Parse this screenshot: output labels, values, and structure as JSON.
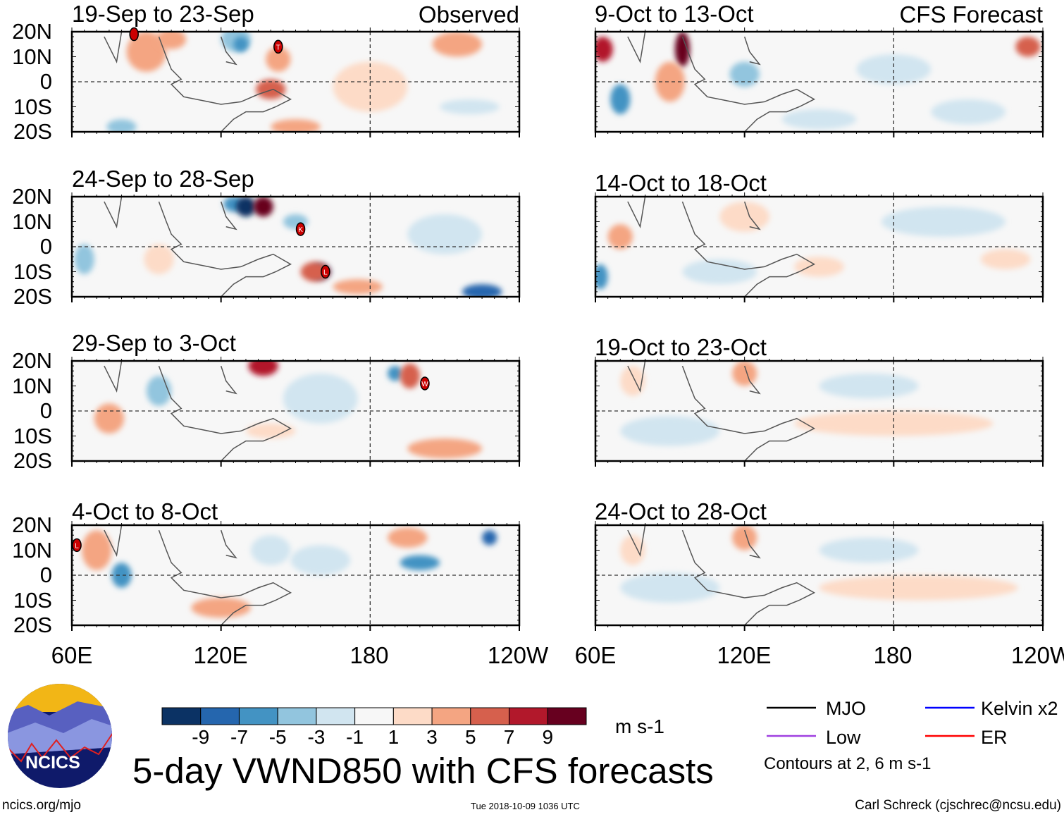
{
  "chart_data": {
    "type": "heatmap",
    "title": "5-day VWND850 with CFS forecasts",
    "units": "m s-1",
    "colorbar": {
      "ticks": [
        "-9",
        "-7",
        "-5",
        "-3",
        "-1",
        "1",
        "3",
        "5",
        "7",
        "9"
      ],
      "colors": [
        "#0b3264",
        "#2566ae",
        "#4393c3",
        "#92c5de",
        "#d1e5f0",
        "#f7f7f7",
        "#fddbc7",
        "#f4a582",
        "#d6604d",
        "#b2182b",
        "#67001f"
      ]
    },
    "lat_ticks": [
      "20N",
      "10N",
      "0",
      "10S",
      "20S"
    ],
    "lon_ticks": [
      "60E",
      "120E",
      "180",
      "120W"
    ],
    "lon_range": [
      60,
      240
    ],
    "lat_range": [
      -20,
      20
    ],
    "observed_label": "Observed",
    "forecast_label": "CFS Forecast",
    "panels": [
      {
        "title": "19-Sep to 23-Sep",
        "column": "observed",
        "storms": [
          {
            "letter": "",
            "lon": 85,
            "lat": 19
          },
          {
            "letter": "T",
            "lon": 143,
            "lat": 14
          }
        ]
      },
      {
        "title": "24-Sep to 28-Sep",
        "column": "observed",
        "storms": [
          {
            "letter": "K",
            "lon": 152,
            "lat": 7
          },
          {
            "letter": "L",
            "lon": 162,
            "lat": -10
          }
        ]
      },
      {
        "title": "29-Sep to 3-Oct",
        "column": "observed",
        "storms": [
          {
            "letter": "W",
            "lon": 202,
            "lat": 11
          }
        ]
      },
      {
        "title": "4-Oct to 8-Oct",
        "column": "observed",
        "storms": [
          {
            "letter": "L",
            "lon": 62,
            "lat": 12
          }
        ]
      },
      {
        "title": "9-Oct to 13-Oct",
        "column": "forecast",
        "storms": []
      },
      {
        "title": "14-Oct to 18-Oct",
        "column": "forecast",
        "storms": []
      },
      {
        "title": "19-Oct to 23-Oct",
        "column": "forecast",
        "storms": []
      },
      {
        "title": "24-Oct to 28-Oct",
        "column": "forecast",
        "storms": []
      }
    ],
    "legend": {
      "items": [
        {
          "label": "MJO",
          "color": "#000000"
        },
        {
          "label": "Kelvin x2",
          "color": "#0000ff"
        },
        {
          "label": "Low",
          "color": "#a040e0"
        },
        {
          "label": "ER",
          "color": "#ff0000"
        }
      ],
      "note": "Contours at 2, 6 m s-1"
    }
  },
  "footer": {
    "logo_text": "NCICS",
    "url": "ncics.org/mjo",
    "timestamp": "Tue 2018-10-09 1036 UTC",
    "author": "Carl Schreck (cjschrec@ncsu.edu)"
  }
}
